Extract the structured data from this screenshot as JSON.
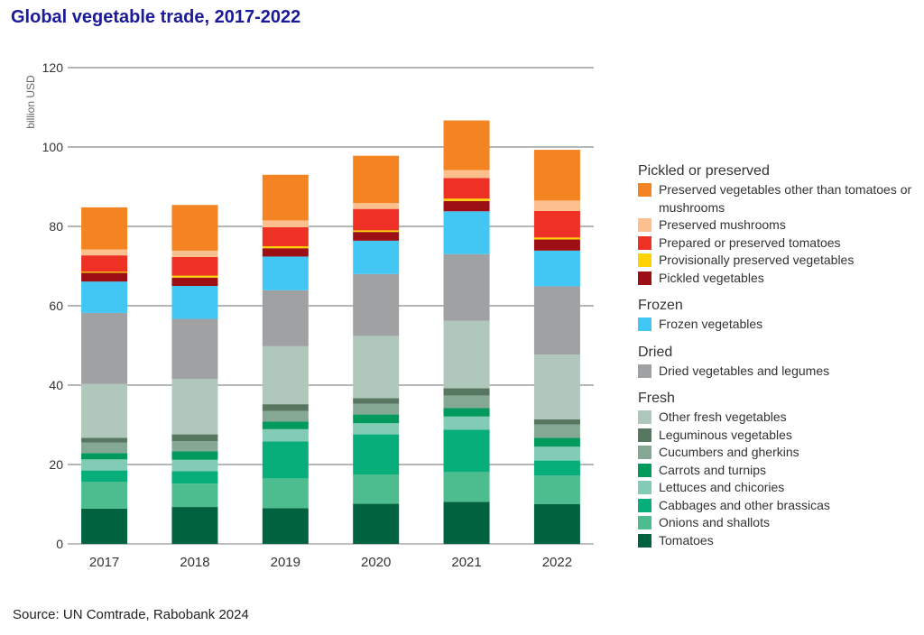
{
  "chart_data": {
    "type": "bar",
    "stacked": true,
    "title": "Global vegetable trade, 2017-2022",
    "ylabel": "billion USD",
    "xlabel": "",
    "ylim": [
      0,
      120
    ],
    "yticks": [
      0,
      20,
      40,
      60,
      80,
      100,
      120
    ],
    "grid": true,
    "legend_placement": "right",
    "categories": [
      "2017",
      "2018",
      "2019",
      "2020",
      "2021",
      "2022"
    ],
    "series": [
      {
        "name": "Tomatoes",
        "group": "Fresh",
        "color": "#00623f",
        "values": [
          8.9,
          9.3,
          9.0,
          10.1,
          10.6,
          10.0
        ]
      },
      {
        "name": "Onions and shallots",
        "group": "Fresh",
        "color": "#4dbd8f",
        "values": [
          6.7,
          5.9,
          7.5,
          7.4,
          7.5,
          7.2
        ]
      },
      {
        "name": "Cabbages and other brassicas",
        "group": "Fresh",
        "color": "#08ae7a",
        "values": [
          2.9,
          3.1,
          9.3,
          10.1,
          10.7,
          3.8
        ]
      },
      {
        "name": "Lettuces and chicories",
        "group": "Fresh",
        "color": "#82cbb5",
        "values": [
          2.8,
          2.9,
          3.1,
          2.8,
          3.3,
          3.5
        ]
      },
      {
        "name": "Carrots and turnips",
        "group": "Fresh",
        "color": "#009a5d",
        "values": [
          1.6,
          2.1,
          1.9,
          2.2,
          2.1,
          2.2
        ]
      },
      {
        "name": "Cucumbers and gherkins",
        "group": "Fresh",
        "color": "#85a895",
        "values": [
          2.6,
          2.6,
          2.7,
          2.7,
          3.2,
          3.4
        ]
      },
      {
        "name": "Leguminous vegetables",
        "group": "Fresh",
        "color": "#587761",
        "values": [
          1.2,
          1.7,
          1.7,
          1.4,
          1.8,
          1.3
        ]
      },
      {
        "name": "Other fresh vegetables",
        "group": "Fresh",
        "color": "#b0c8bb",
        "values": [
          13.6,
          14.0,
          14.6,
          15.7,
          17.0,
          16.3
        ]
      },
      {
        "name": "Dried vegetables and legumes",
        "group": "Dried",
        "color": "#a0a1a3",
        "values": [
          17.9,
          15.1,
          14.1,
          15.6,
          16.8,
          17.2
        ]
      },
      {
        "name": "Frozen vegetables",
        "group": "Frozen",
        "color": "#42c7f4",
        "values": [
          7.9,
          8.3,
          8.5,
          8.4,
          10.8,
          9.0
        ]
      },
      {
        "name": "Pickled vegetables",
        "group": "Pickled or preserved",
        "color": "#9b0f15",
        "values": [
          2.2,
          2.1,
          2.1,
          2.2,
          2.6,
          2.8
        ]
      },
      {
        "name": "Provisionally preserved vegetables",
        "group": "Pickled or preserved",
        "color": "#ffd200",
        "values": [
          0.3,
          0.5,
          0.5,
          0.4,
          0.6,
          0.5
        ]
      },
      {
        "name": "Prepared or preserved tomatoes",
        "group": "Pickled or preserved",
        "color": "#ef3125",
        "values": [
          4.1,
          4.7,
          4.8,
          5.4,
          5.2,
          6.7
        ]
      },
      {
        "name": "Preserved mushrooms",
        "group": "Pickled or preserved",
        "color": "#fcc08f",
        "values": [
          1.5,
          1.6,
          1.7,
          1.5,
          2.0,
          2.6
        ]
      },
      {
        "name": "Preserved vegetables other than tomatoes or mushrooms",
        "group": "Pickled or preserved",
        "color": "#f48421",
        "values": [
          10.6,
          11.5,
          11.5,
          11.9,
          12.5,
          12.8
        ]
      }
    ],
    "legend_groups": [
      "Pickled or preserved",
      "Frozen",
      "Dried",
      "Fresh"
    ]
  },
  "title": "Global vegetable trade, 2017-2022",
  "source": "Source: UN Comtrade, Rabobank 2024",
  "title_color": "#1a1a9a"
}
